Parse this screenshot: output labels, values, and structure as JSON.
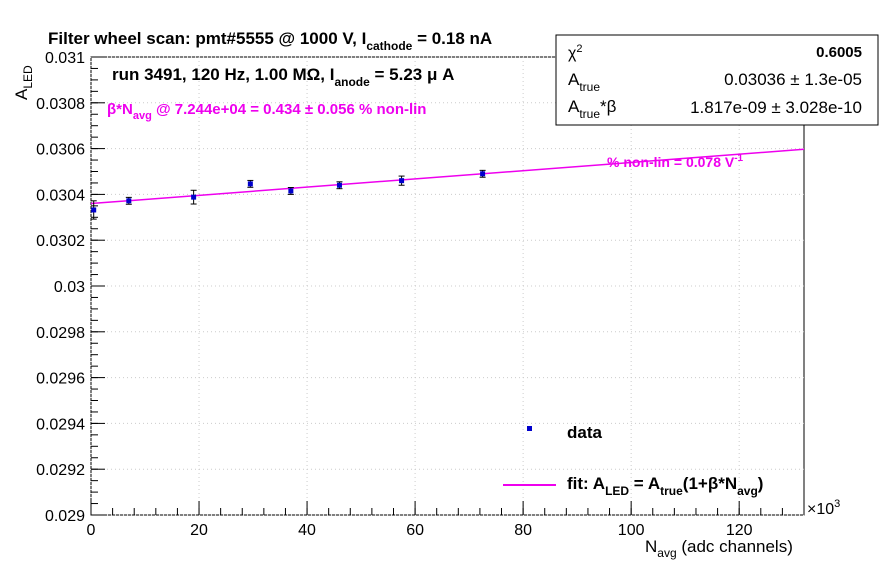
{
  "chart_data": {
    "type": "scatter",
    "title": "Filter wheel scan: pmt#5555 @  1000 V, I",
    "title_sub": "cathode",
    "title_tail": " = 0.18 nA",
    "run_info": "run 3491, 120 Hz, 1.00 MΩ, I",
    "run_info_sub": "anode",
    "run_info_tail": " = 5.23 μ A",
    "nonlin_text": "β*N",
    "nonlin_text_sub": "avg",
    "nonlin_text_tail": " @ 7.244e+04 = 0.434 ± 0.056 % non-lin",
    "slope_label": "% non-lin = 0.078 V",
    "slope_label_sup": "-1",
    "xlabel": "N",
    "xlabel_sub": "avg",
    "xlabel_tail": " (adc channels)",
    "ylabel": "A",
    "ylabel_sub": "LED",
    "x_multiplier": "×10",
    "x_multiplier_exp": "3",
    "xlim": [
      0,
      132
    ],
    "ylim": [
      0.029,
      0.031
    ],
    "x_ticks": [
      0,
      20,
      40,
      60,
      80,
      100,
      120
    ],
    "x_tick_labels": [
      "0",
      "20",
      "40",
      "60",
      "80",
      "100",
      "120"
    ],
    "y_ticks": [
      0.029,
      0.0292,
      0.0294,
      0.0296,
      0.0298,
      0.03,
      0.0302,
      0.0304,
      0.0306,
      0.0308,
      0.031
    ],
    "y_tick_labels": [
      "0.029",
      "0.0292",
      "0.0294",
      "0.0296",
      "0.0298",
      "0.03",
      "0.0302",
      "0.0304",
      "0.0306",
      "0.0308",
      "0.031"
    ],
    "grid": true,
    "series": [
      {
        "name": "data",
        "color": "#0000cc",
        "points": [
          {
            "x": 0.5,
            "y": 0.030332,
            "err": 4e-05
          },
          {
            "x": 7.0,
            "y": 0.030372,
            "err": 1.5e-05
          },
          {
            "x": 19.0,
            "y": 0.030388,
            "err": 3e-05
          },
          {
            "x": 29.5,
            "y": 0.030446,
            "err": 1.5e-05
          },
          {
            "x": 37.0,
            "y": 0.030415,
            "err": 1.5e-05
          },
          {
            "x": 46.0,
            "y": 0.03044,
            "err": 1.5e-05
          },
          {
            "x": 57.5,
            "y": 0.03046,
            "err": 2e-05
          },
          {
            "x": 72.5,
            "y": 0.03049,
            "err": 1.5e-05
          }
        ]
      },
      {
        "name": "fit",
        "color": "#ee00ee",
        "type": "line",
        "x": [
          0,
          132
        ],
        "y": [
          0.03036,
          0.030597
        ]
      }
    ],
    "legend": {
      "data_label": "data",
      "fit_label_1": "fit: A",
      "fit_label_sub1": "LED",
      "fit_label_2": " = A",
      "fit_label_sub2": "true",
      "fit_label_3": "(1+β*N",
      "fit_label_sub3": "avg",
      "fit_label_4": ")"
    },
    "stats": {
      "chi2_label": "χ",
      "chi2_sup": "2",
      "chi2_value": "0.6005",
      "atrue_label": "A",
      "atrue_sub": "true",
      "atrue_value": "0.03036 ± 1.3e-05",
      "atb_label": "A",
      "atb_sub": "true",
      "atb_tail": "*β",
      "atb_value": "1.817e-09 ± 3.028e-10"
    }
  }
}
